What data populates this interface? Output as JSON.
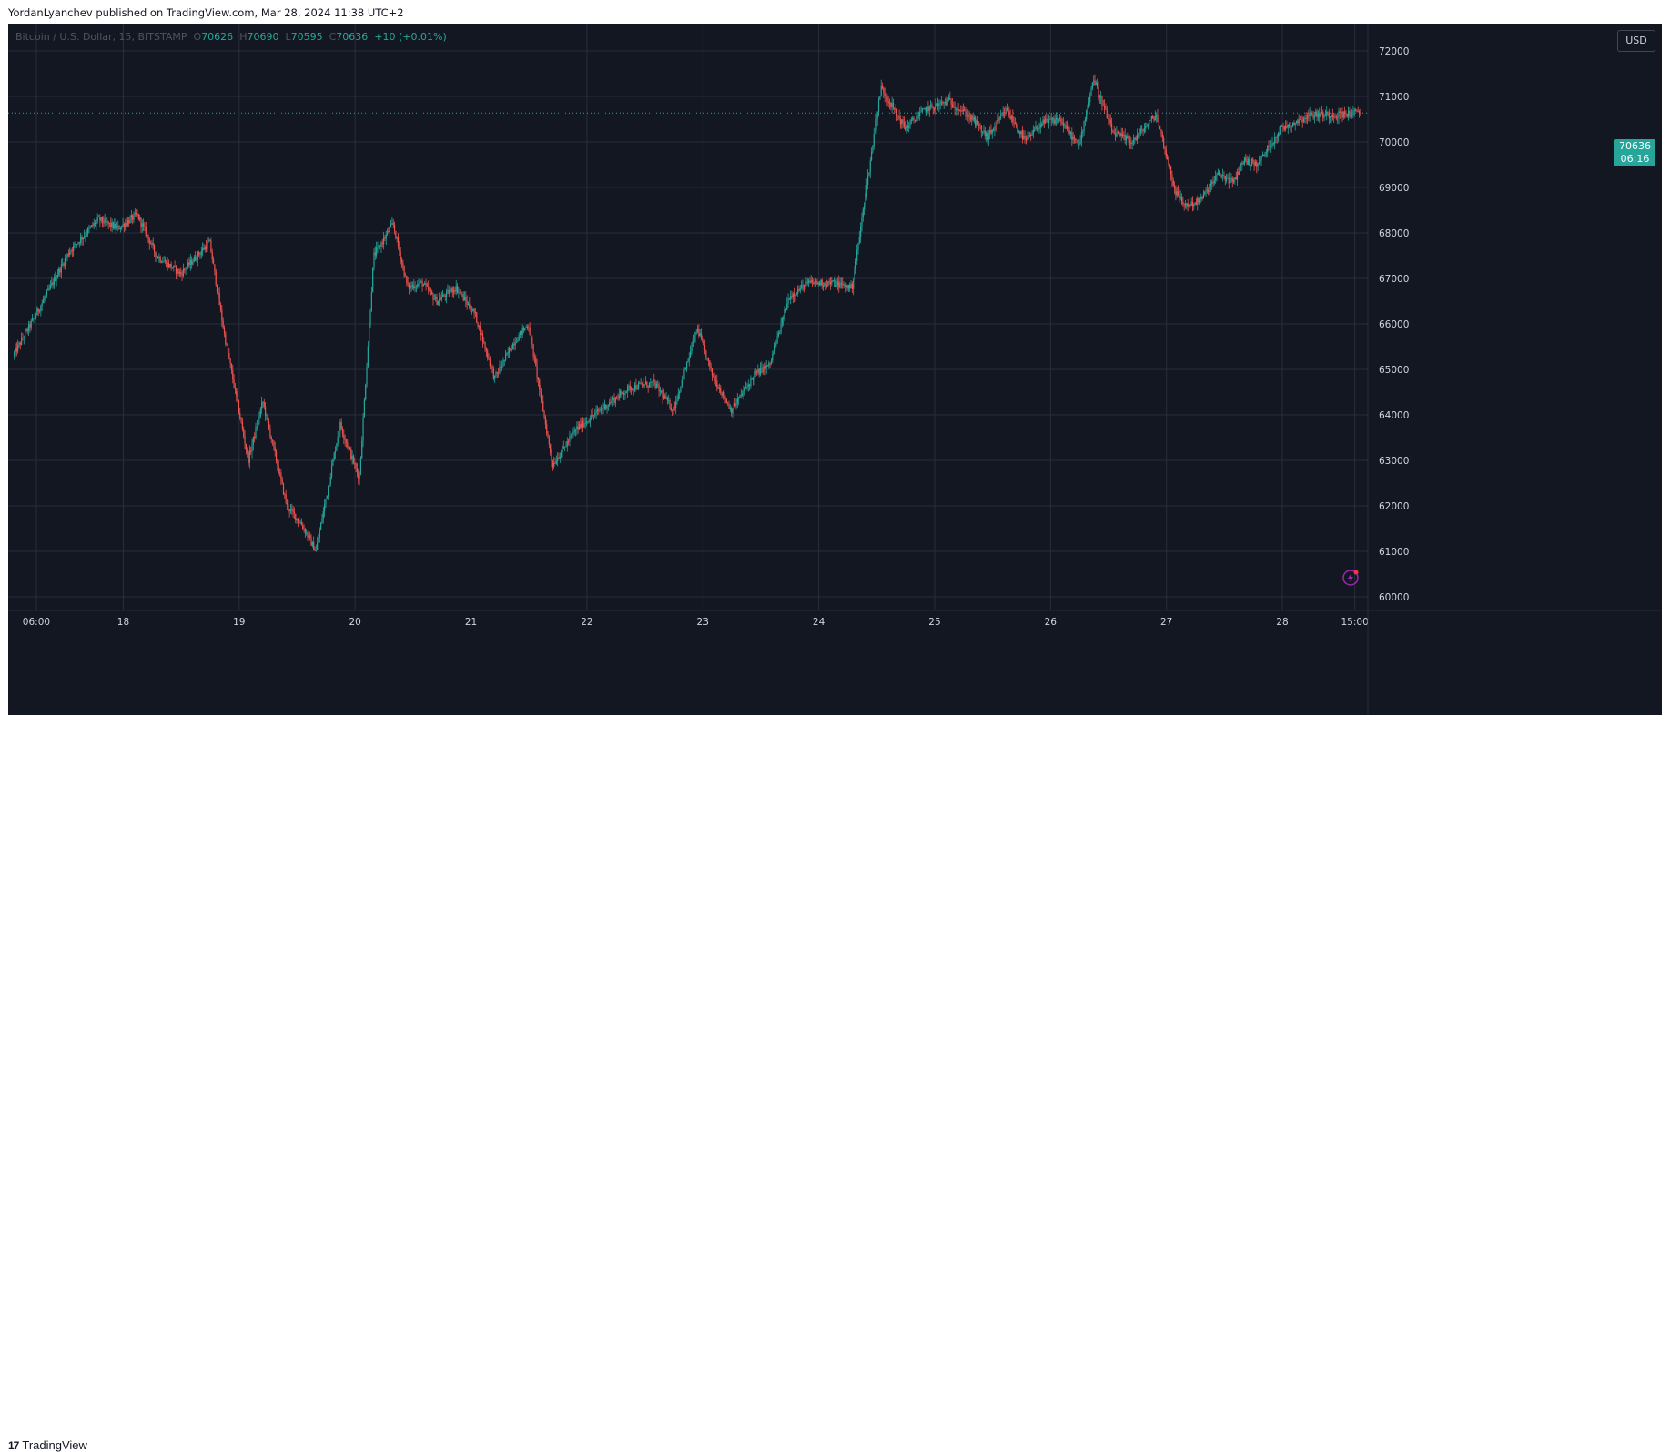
{
  "publisher_text": "YordanLyanchev published on TradingView.com, Mar 28, 2024 11:38 UTC+2",
  "legend": {
    "symbol": "Bitcoin / U.S. Dollar, 15, BITSTAMP",
    "open_label": "O",
    "open": "70626",
    "high_label": "H",
    "high": "70690",
    "low_label": "L",
    "low": "70595",
    "close_label": "C",
    "close": "70636",
    "change": "+10 (+0.01%)"
  },
  "currency_button": "USD",
  "price_tag": {
    "price": "70636",
    "countdown": "06:16"
  },
  "footer": {
    "logo_mark": "17",
    "logo_text": "TradingView"
  },
  "colors": {
    "background": "#131722",
    "grid": "#2a2e39",
    "up": "#26a69a",
    "down": "#ef5350",
    "text": "#d1d4dc",
    "last_price": "#26a69a"
  },
  "icons": [
    "lightning-icon",
    "tradingview-logo-icon"
  ],
  "chart_data": {
    "type": "candlestick",
    "title": "Bitcoin / U.S. Dollar, 15, BITSTAMP",
    "ylim": [
      59700,
      72600
    ],
    "y_ticks": [
      "72000",
      "71000",
      "70000",
      "69000",
      "68000",
      "67000",
      "66000",
      "65000",
      "64000",
      "63000",
      "62000",
      "61000",
      "60000"
    ],
    "x_ticks": [
      "06:00",
      "18",
      "19",
      "20",
      "21",
      "22",
      "23",
      "24",
      "25",
      "26",
      "27",
      "28",
      "15:00"
    ],
    "x_tick_hours": [
      6,
      24,
      48,
      72,
      96,
      120,
      144,
      168,
      192,
      216,
      240,
      264,
      279
    ],
    "x_range_hours": [
      1.3,
      280.2
    ],
    "grid": true,
    "last_price": 70636,
    "last_price_line": "dotted",
    "series": [
      {
        "name": "BTCUSD",
        "path_hours": [
          1.3,
          6,
          13,
          19,
          23,
          27,
          31,
          36,
          42,
          45,
          50,
          53,
          58,
          61,
          64,
          69,
          73,
          76,
          80,
          83,
          86,
          89,
          93,
          97,
          101,
          105,
          108,
          113,
          118,
          124,
          129,
          134,
          138,
          143,
          146,
          150,
          155,
          158,
          162,
          166,
          171,
          175,
          181,
          186,
          190,
          195,
          200,
          203,
          207,
          211,
          214,
          218,
          222,
          225,
          229,
          233,
          238,
          242,
          244,
          247,
          251,
          254,
          256,
          259,
          262,
          264,
          266,
          270,
          275,
          280.2
        ],
        "path_prices": [
          65300,
          66200,
          67600,
          68300,
          68100,
          68400,
          67500,
          67100,
          67800,
          65800,
          63000,
          64300,
          62000,
          61600,
          61000,
          63800,
          62600,
          67500,
          68200,
          66800,
          66900,
          66500,
          66800,
          66200,
          64800,
          65600,
          66000,
          62900,
          63700,
          64200,
          64600,
          64700,
          64100,
          65900,
          64900,
          64100,
          64900,
          65100,
          66600,
          66900,
          66900,
          66800,
          71200,
          70300,
          70700,
          70900,
          70500,
          70100,
          70700,
          70000,
          70400,
          70500,
          69900,
          71400,
          70200,
          70000,
          70600,
          68900,
          68600,
          68700,
          69300,
          69100,
          69600,
          69500,
          70000,
          70300,
          70400,
          70600,
          70600,
          70636
        ]
      }
    ]
  }
}
